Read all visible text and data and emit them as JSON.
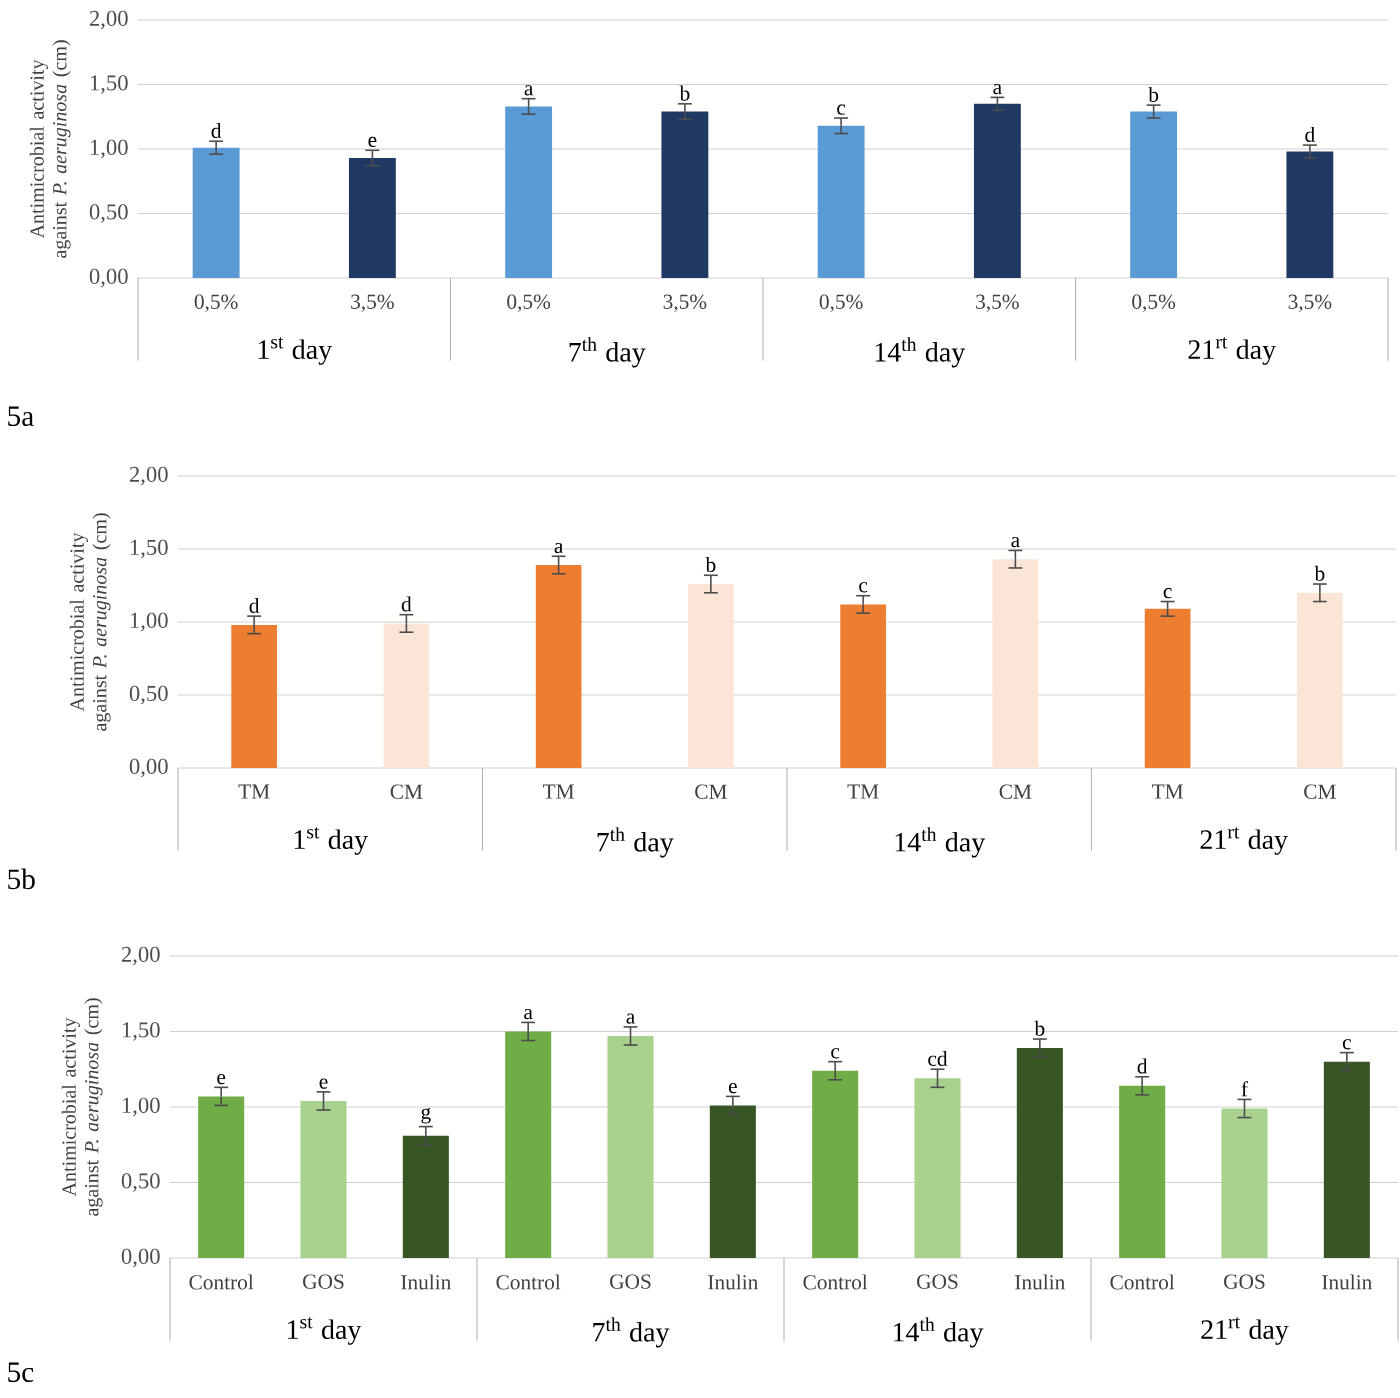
{
  "chart_data": [
    {
      "type": "bar",
      "categories": [
        "1$^{st}$ day",
        "7$^{th}$ day",
        "14$^{th}$ day",
        "21$^{rt}$ day"
      ],
      "series": [
        {
          "name": "0,5%",
          "color": "#5b9bd5",
          "values": [
            1.01,
            1.33,
            1.18,
            1.29
          ],
          "errors": [
            0.05,
            0.06,
            0.06,
            0.05
          ],
          "value_labels": [
            "d",
            "a",
            "c",
            "b"
          ]
        },
        {
          "name": "3,5%",
          "color": "#1f3864",
          "values": [
            0.93,
            1.29,
            1.35,
            0.98
          ],
          "errors": [
            0.06,
            0.06,
            0.05,
            0.05
          ],
          "value_labels": [
            "e",
            "b",
            "a",
            "d"
          ]
        }
      ],
      "ylabel": "Antimicrobial activity against *P. aeruginosa* (cm)",
      "ylim": [
        0,
        2
      ],
      "yticks": [
        {
          "value": 0,
          "label": "0,00"
        },
        {
          "value": 0.5,
          "label": "0,50"
        },
        {
          "value": 1,
          "label": "1,00"
        },
        {
          "value": 1.5,
          "label": "1,50"
        },
        {
          "value": 2,
          "label": "2,00"
        }
      ],
      "grid": "y",
      "annotations": [
        "5a"
      ]
    },
    {
      "type": "bar",
      "categories": [
        "1$^{st}$ day",
        "7$^{th}$ day",
        "14$^{th}$ day",
        "21$^{rt}$ day"
      ],
      "series": [
        {
          "name": "TM",
          "color": "#ed7d31",
          "values": [
            0.98,
            1.39,
            1.12,
            1.09
          ],
          "errors": [
            0.06,
            0.06,
            0.06,
            0.05
          ],
          "value_labels": [
            "d",
            "a",
            "c",
            "c"
          ]
        },
        {
          "name": "CM",
          "color": "#fbe5d6",
          "values": [
            0.99,
            1.26,
            1.43,
            1.2
          ],
          "errors": [
            0.06,
            0.06,
            0.06,
            0.06
          ],
          "value_labels": [
            "d",
            "b",
            "a",
            "b"
          ]
        }
      ],
      "ylabel": "Antimicrobial activity against *P. aeruginosa* (cm)",
      "ylim": [
        0,
        2
      ],
      "yticks": [
        {
          "value": 0,
          "label": "0,00"
        },
        {
          "value": 0.5,
          "label": "0,50"
        },
        {
          "value": 1,
          "label": "1,00"
        },
        {
          "value": 1.5,
          "label": "1,50"
        },
        {
          "value": 2,
          "label": "2,00"
        }
      ],
      "grid": "y",
      "annotations": [
        "5b"
      ]
    },
    {
      "type": "bar",
      "categories": [
        "1$^{st}$ day",
        "7$^{th}$ day",
        "14$^{th}$ day",
        "21$^{rt}$ day"
      ],
      "series": [
        {
          "name": "Control",
          "color": "#70ad47",
          "values": [
            1.07,
            1.5,
            1.24,
            1.14
          ],
          "errors": [
            0.06,
            0.06,
            0.06,
            0.06
          ],
          "value_labels": [
            "e",
            "a",
            "c",
            "d"
          ]
        },
        {
          "name": "GOS",
          "color": "#a9d18e",
          "values": [
            1.04,
            1.47,
            1.19,
            0.99
          ],
          "errors": [
            0.06,
            0.06,
            0.06,
            0.06
          ],
          "value_labels": [
            "e",
            "a",
            "cd",
            "f"
          ]
        },
        {
          "name": "Inulin",
          "color": "#375623",
          "values": [
            0.81,
            1.01,
            1.39,
            1.3
          ],
          "errors": [
            0.06,
            0.06,
            0.06,
            0.06
          ],
          "value_labels": [
            "g",
            "e",
            "b",
            "c"
          ]
        }
      ],
      "ylabel": "Antimicrobial activity against *P. aeruginosa* (cm)",
      "ylim": [
        0,
        2
      ],
      "yticks": [
        {
          "value": 0,
          "label": "0,00"
        },
        {
          "value": 0.5,
          "label": "0,50"
        },
        {
          "value": 1,
          "label": "1,00"
        },
        {
          "value": 1.5,
          "label": "1,50"
        },
        {
          "value": 2,
          "label": "2,00"
        }
      ],
      "grid": "y",
      "annotations": [
        "5c"
      ]
    }
  ]
}
